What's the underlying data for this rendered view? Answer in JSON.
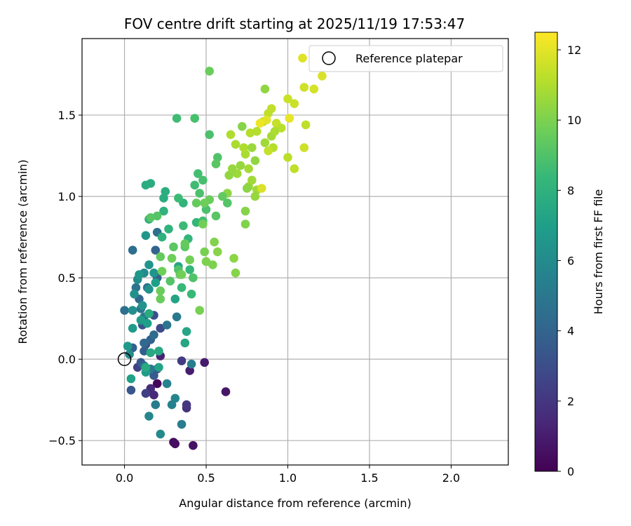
{
  "chart_data": {
    "type": "scatter",
    "title": "FOV centre drift starting at 2025/11/19 17:53:47",
    "xlabel": "Angular distance from reference (arcmin)",
    "ylabel": "Rotation from reference (arcmin)",
    "xlim": [
      -0.26,
      2.35
    ],
    "ylim": [
      -0.65,
      1.97
    ],
    "xticks": [
      0.0,
      0.5,
      1.0,
      1.5,
      2.0
    ],
    "xtick_labels": [
      "0.0",
      "0.5",
      "1.0",
      "1.5",
      "2.0"
    ],
    "yticks": [
      -0.5,
      0.0,
      0.5,
      1.0,
      1.5
    ],
    "ytick_labels": [
      "−0.5",
      "0.0",
      "0.5",
      "1.0",
      "1.5"
    ],
    "grid": true,
    "legend": {
      "placement": "top-right",
      "entries": [
        "Reference platepar"
      ]
    },
    "reference_point": {
      "x": 0.0,
      "y": 0.0,
      "label": "Reference platepar"
    },
    "colorbar": {
      "label": "Hours from first FF file",
      "range": [
        0,
        12.5
      ],
      "ticks": [
        0,
        2,
        4,
        6,
        8,
        10,
        12
      ],
      "tick_labels": [
        "0",
        "2",
        "4",
        "6",
        "8",
        "10",
        "12"
      ],
      "colormap": "viridis",
      "colormap_stops": [
        "#440154",
        "#482878",
        "#3e4989",
        "#31688e",
        "#26828e",
        "#1f9e89",
        "#35b779",
        "#6ece58",
        "#b5de2b",
        "#fde725"
      ]
    },
    "points": [
      [
        0.2,
        -0.15,
        0.2
      ],
      [
        0.3,
        -0.51,
        0.4
      ],
      [
        0.31,
        -0.52,
        0.5
      ],
      [
        0.42,
        -0.53,
        0.6
      ],
      [
        0.62,
        -0.2,
        0.8
      ],
      [
        0.49,
        -0.02,
        0.9
      ],
      [
        0.4,
        -0.07,
        1.0
      ],
      [
        0.22,
        0.02,
        1.2
      ],
      [
        0.18,
        -0.22,
        1.4
      ],
      [
        0.16,
        -0.18,
        1.5
      ],
      [
        0.38,
        -0.3,
        1.8
      ],
      [
        0.38,
        -0.28,
        2.0
      ],
      [
        0.35,
        -0.01,
        2.2
      ],
      [
        0.13,
        -0.21,
        2.4
      ],
      [
        0.08,
        -0.05,
        2.5
      ],
      [
        0.2,
        -0.06,
        2.7
      ],
      [
        0.22,
        0.19,
        2.8
      ],
      [
        0.13,
        0.09,
        3.0
      ],
      [
        0.18,
        0.27,
        3.1
      ],
      [
        0.11,
        0.21,
        3.3
      ],
      [
        0.04,
        -0.19,
        3.4
      ],
      [
        0.1,
        -0.02,
        3.5
      ],
      [
        0.18,
        -0.1,
        3.6
      ],
      [
        0.12,
        0.05,
        3.7
      ],
      [
        0.05,
        0.07,
        3.8
      ],
      [
        0.16,
        0.12,
        3.9
      ],
      [
        0.2,
        0.5,
        3.9
      ],
      [
        0.19,
        0.67,
        4.0
      ],
      [
        0.09,
        0.37,
        4.1
      ],
      [
        0.12,
        0.1,
        4.2
      ],
      [
        0.12,
        -0.04,
        4.3
      ],
      [
        0.18,
        0.15,
        4.4
      ],
      [
        0.2,
        0.78,
        4.5
      ],
      [
        0.05,
        0.67,
        4.5
      ],
      [
        0.0,
        0.3,
        4.6
      ],
      [
        0.07,
        0.44,
        4.7
      ],
      [
        0.14,
        0.44,
        4.7
      ],
      [
        0.1,
        0.31,
        4.8
      ],
      [
        0.26,
        0.21,
        4.9
      ],
      [
        0.12,
        0.26,
        5.0
      ],
      [
        0.32,
        0.26,
        5.0
      ],
      [
        0.16,
        -0.06,
        5.1
      ],
      [
        0.19,
        -0.28,
        5.2
      ],
      [
        0.35,
        -0.4,
        5.3
      ],
      [
        0.41,
        -0.03,
        5.4
      ],
      [
        0.29,
        -0.28,
        5.5
      ],
      [
        0.26,
        -0.15,
        5.6
      ],
      [
        0.31,
        -0.24,
        5.7
      ],
      [
        0.15,
        -0.35,
        5.8
      ],
      [
        0.22,
        -0.46,
        5.9
      ],
      [
        0.03,
        0.03,
        6.0
      ],
      [
        0.12,
        0.53,
        6.0
      ],
      [
        0.08,
        0.49,
        6.1
      ],
      [
        0.05,
        0.3,
        6.2
      ],
      [
        0.06,
        0.4,
        6.3
      ],
      [
        0.11,
        0.33,
        6.4
      ],
      [
        0.15,
        0.43,
        6.4
      ],
      [
        0.18,
        0.53,
        6.5
      ],
      [
        0.15,
        0.58,
        6.5
      ],
      [
        0.13,
        0.76,
        6.6
      ],
      [
        0.09,
        0.52,
        6.6
      ],
      [
        0.02,
        0.08,
        6.7
      ],
      [
        0.05,
        0.19,
        6.8
      ],
      [
        0.1,
        0.24,
        6.9
      ],
      [
        0.13,
        -0.08,
        6.9
      ],
      [
        0.19,
        0.47,
        7.0
      ],
      [
        0.14,
        0.22,
        7.0
      ],
      [
        0.04,
        -0.12,
        7.1
      ],
      [
        0.21,
        -0.05,
        7.2
      ],
      [
        0.31,
        0.37,
        7.3
      ],
      [
        0.33,
        0.57,
        7.3
      ],
      [
        0.38,
        0.17,
        7.4
      ],
      [
        0.37,
        0.1,
        7.4
      ],
      [
        0.21,
        0.05,
        7.5
      ],
      [
        0.16,
        0.04,
        7.5
      ],
      [
        0.13,
        -0.05,
        7.6
      ],
      [
        0.15,
        0.28,
        7.6
      ],
      [
        0.13,
        1.07,
        7.7
      ],
      [
        0.16,
        1.08,
        7.7
      ],
      [
        0.24,
        0.99,
        7.8
      ],
      [
        0.25,
        1.03,
        7.8
      ],
      [
        0.15,
        0.86,
        7.9
      ],
      [
        0.24,
        0.91,
        8.0
      ],
      [
        0.23,
        0.75,
        8.0
      ],
      [
        0.27,
        0.8,
        8.1
      ],
      [
        0.36,
        0.96,
        8.1
      ],
      [
        0.39,
        0.74,
        8.2
      ],
      [
        0.44,
        0.84,
        8.3
      ],
      [
        0.4,
        0.55,
        8.3
      ],
      [
        0.41,
        0.4,
        8.4
      ],
      [
        0.35,
        0.44,
        8.4
      ],
      [
        0.36,
        0.82,
        8.5
      ],
      [
        0.33,
        0.99,
        8.5
      ],
      [
        0.43,
        1.07,
        8.6
      ],
      [
        0.48,
        0.85,
        8.7
      ],
      [
        0.45,
        1.14,
        8.7
      ],
      [
        0.48,
        1.1,
        8.8
      ],
      [
        0.46,
        1.02,
        8.9
      ],
      [
        0.5,
        0.92,
        8.9
      ],
      [
        0.42,
        0.5,
        9.0
      ],
      [
        0.33,
        0.55,
        9.0
      ],
      [
        0.28,
        0.48,
        9.1
      ],
      [
        0.2,
        0.88,
        9.1
      ],
      [
        0.16,
        0.87,
        9.2
      ],
      [
        0.3,
        0.69,
        9.3
      ],
      [
        0.37,
        0.69,
        9.3
      ],
      [
        0.34,
        0.52,
        9.4
      ],
      [
        0.37,
        0.71,
        9.5
      ],
      [
        0.22,
        0.63,
        9.5
      ],
      [
        0.22,
        0.42,
        9.6
      ],
      [
        0.22,
        0.37,
        9.6
      ],
      [
        0.23,
        0.54,
        9.7
      ],
      [
        0.29,
        0.62,
        9.7
      ],
      [
        0.35,
        0.52,
        9.8
      ],
      [
        0.4,
        0.61,
        9.8
      ],
      [
        0.46,
        0.3,
        9.9
      ],
      [
        0.49,
        0.66,
        9.9
      ],
      [
        0.5,
        0.6,
        10.0
      ],
      [
        0.54,
        0.58,
        10.0
      ],
      [
        0.55,
        0.72,
        10.1
      ],
      [
        0.57,
        0.66,
        10.2
      ],
      [
        0.68,
        0.53,
        10.2
      ],
      [
        0.67,
        0.62,
        10.3
      ],
      [
        0.63,
        1.02,
        10.3
      ],
      [
        0.64,
        1.13,
        10.4
      ],
      [
        0.66,
        1.17,
        10.5
      ],
      [
        0.71,
        1.19,
        10.5
      ],
      [
        0.69,
        1.14,
        10.6
      ],
      [
        0.76,
        1.06,
        10.6
      ],
      [
        0.78,
        1.1,
        10.7
      ],
      [
        0.81,
        1.04,
        10.7
      ],
      [
        0.76,
        1.17,
        10.8
      ],
      [
        0.74,
        1.26,
        10.9
      ],
      [
        0.68,
        1.32,
        10.9
      ],
      [
        0.65,
        1.38,
        11.0
      ],
      [
        0.73,
        1.3,
        11.0
      ],
      [
        0.77,
        1.39,
        11.1
      ],
      [
        0.81,
        1.4,
        11.1
      ],
      [
        0.85,
        1.46,
        11.2
      ],
      [
        0.88,
        1.51,
        11.3
      ],
      [
        0.9,
        1.54,
        11.3
      ],
      [
        0.93,
        1.45,
        11.4
      ],
      [
        1.0,
        1.6,
        11.5
      ],
      [
        1.04,
        1.57,
        11.5
      ],
      [
        1.1,
        1.67,
        11.6
      ],
      [
        1.16,
        1.66,
        11.7
      ],
      [
        1.21,
        1.74,
        11.8
      ],
      [
        1.09,
        1.85,
        11.9
      ],
      [
        0.87,
        1.47,
        12.0
      ],
      [
        0.96,
        1.42,
        11.2
      ],
      [
        0.9,
        1.37,
        10.8
      ],
      [
        0.91,
        1.3,
        11.1
      ],
      [
        0.88,
        1.28,
        11.4
      ],
      [
        1.0,
        1.24,
        11.2
      ],
      [
        1.04,
        1.17,
        11.3
      ],
      [
        1.1,
        1.3,
        11.6
      ],
      [
        1.11,
        1.44,
        11.3
      ],
      [
        0.92,
        1.4,
        10.9
      ],
      [
        0.86,
        1.33,
        10.7
      ],
      [
        0.78,
        1.3,
        10.6
      ],
      [
        0.8,
        1.22,
        10.4
      ],
      [
        0.75,
        1.05,
        10.3
      ],
      [
        0.74,
        0.91,
        10.2
      ],
      [
        0.74,
        0.83,
        10.1
      ],
      [
        0.8,
        1.0,
        10.5
      ],
      [
        0.84,
        1.05,
        11.8
      ],
      [
        1.01,
        1.48,
        12.1
      ],
      [
        0.83,
        1.45,
        12.2
      ],
      [
        0.72,
        1.43,
        10.2
      ],
      [
        0.86,
        1.66,
        10.4
      ],
      [
        0.52,
        1.77,
        9.6
      ],
      [
        0.32,
        1.48,
        8.6
      ],
      [
        0.43,
        1.48,
        8.8
      ],
      [
        0.52,
        1.38,
        8.9
      ],
      [
        0.57,
        1.24,
        9.0
      ],
      [
        0.56,
        1.2,
        9.2
      ],
      [
        0.6,
        1.0,
        9.4
      ],
      [
        0.52,
        0.98,
        9.6
      ],
      [
        0.49,
        0.96,
        9.7
      ],
      [
        0.48,
        0.83,
        9.8
      ],
      [
        0.44,
        0.96,
        9.5
      ],
      [
        0.56,
        0.88,
        9.2
      ],
      [
        0.63,
        0.96,
        9.1
      ]
    ]
  }
}
